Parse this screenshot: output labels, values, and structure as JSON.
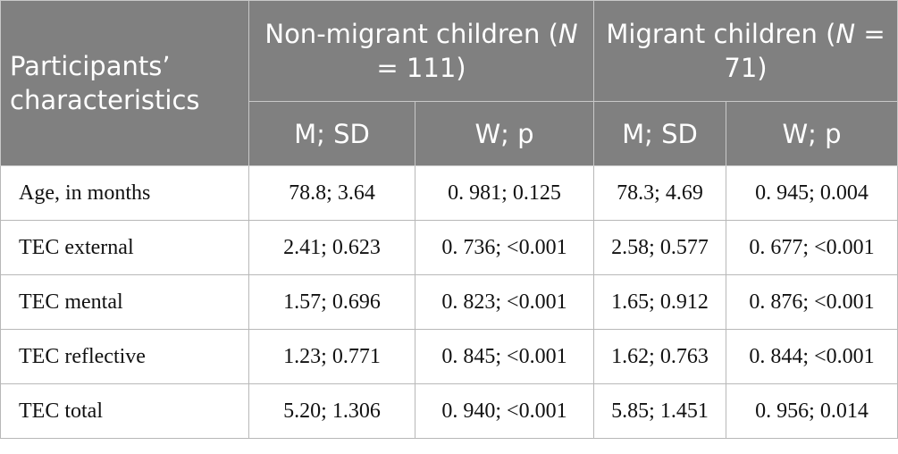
{
  "table": {
    "header": {
      "group_label": "Participants’ characteristics",
      "groups": [
        {
          "before": "Non-migrant children (",
          "italic": "N",
          "after": " = 111)"
        },
        {
          "before": "Migrant children (",
          "italic": "N",
          "after": " = 71)"
        }
      ],
      "subheaders": [
        "M; SD",
        "W; p",
        "M; SD",
        "W; p"
      ]
    },
    "rows": [
      [
        "Age, in months",
        "78.8; 3.64",
        "0. 981; 0.125",
        "78.3; 4.69",
        "0. 945; 0.004"
      ],
      [
        "TEC external",
        "2.41; 0.623",
        "0. 736; <0.001",
        "2.58; 0.577",
        "0. 677; <0.001"
      ],
      [
        "TEC mental",
        "1.57; 0.696",
        "0. 823; <0.001",
        "1.65; 0.912",
        "0. 876; <0.001"
      ],
      [
        "TEC reflective",
        "1.23; 0.771",
        "0. 845; <0.001",
        "1.62; 0.763",
        "0. 844; <0.001"
      ],
      [
        "TEC total",
        "5.20; 1.306",
        "0. 940; <0.001",
        "5.85; 1.451",
        "0. 956; 0.014"
      ]
    ]
  }
}
